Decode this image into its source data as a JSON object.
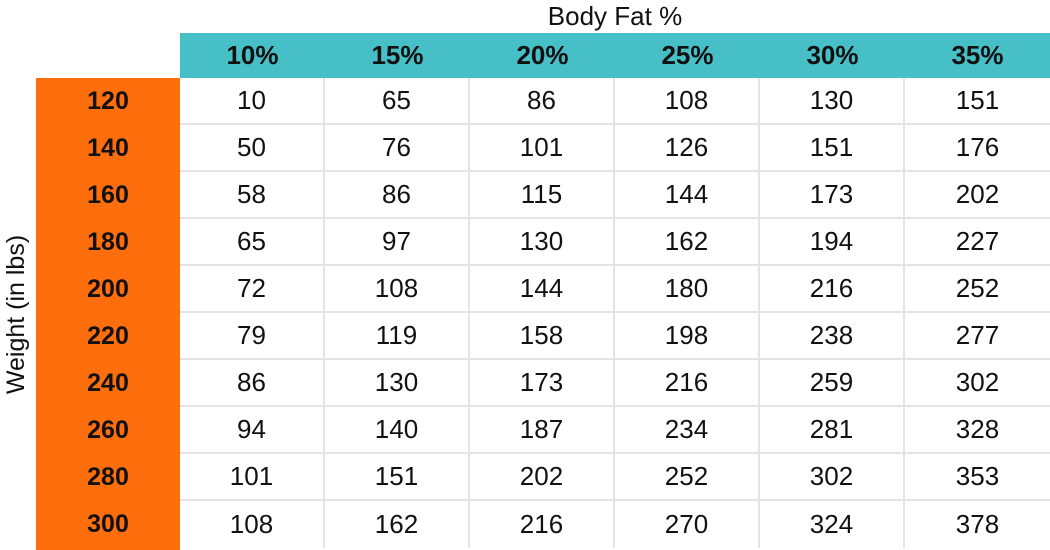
{
  "chart_data": {
    "type": "table",
    "title": "Body Fat %",
    "xlabel": "Body Fat %",
    "ylabel": "Weight (in lbs)",
    "columns": [
      "10%",
      "15%",
      "20%",
      "25%",
      "30%",
      "35%"
    ],
    "rows": [
      "120",
      "140",
      "160",
      "180",
      "200",
      "220",
      "240",
      "260",
      "280",
      "300"
    ],
    "values": [
      [
        "10",
        "65",
        "86",
        "108",
        "130",
        "151"
      ],
      [
        "50",
        "76",
        "101",
        "126",
        "151",
        "176"
      ],
      [
        "58",
        "86",
        "115",
        "144",
        "173",
        "202"
      ],
      [
        "65",
        "97",
        "130",
        "162",
        "194",
        "227"
      ],
      [
        "72",
        "108",
        "144",
        "180",
        "216",
        "252"
      ],
      [
        "79",
        "119",
        "158",
        "198",
        "238",
        "277"
      ],
      [
        "86",
        "130",
        "173",
        "216",
        "259",
        "302"
      ],
      [
        "94",
        "140",
        "187",
        "234",
        "281",
        "328"
      ],
      [
        "101",
        "151",
        "202",
        "252",
        "302",
        "353"
      ],
      [
        "108",
        "162",
        "216",
        "270",
        "324",
        "378"
      ]
    ],
    "colors": {
      "column_header_bg": "#47bfc7",
      "row_header_bg": "#ff6e0d",
      "grid": "#e4e4e4"
    }
  }
}
